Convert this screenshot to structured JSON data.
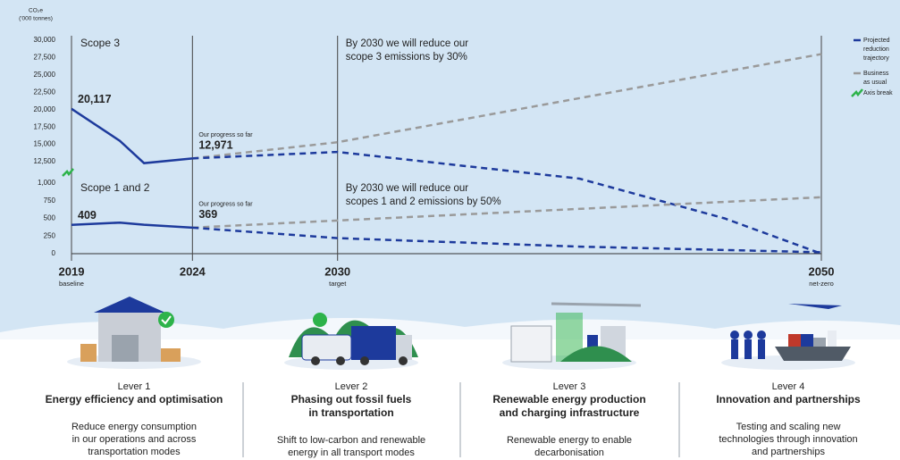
{
  "chart_data": {
    "type": "line",
    "y_label": [
      "CO₂e",
      "('000 tonnes)"
    ],
    "xlim": [
      2019,
      2050
    ],
    "xticks": [
      2019,
      2024,
      2030,
      2050
    ],
    "xtick_notes": [
      "baseline",
      null,
      "target",
      "net-zero"
    ],
    "ylim": [
      0,
      30000
    ],
    "ybreak": [
      1000,
      12500
    ],
    "yticks": [
      0,
      250,
      500,
      750,
      {
        "value": 1000,
        "label": "1,000"
      },
      {
        "value": 12500,
        "label": "12,500"
      },
      {
        "value": 15000,
        "label": "15,000"
      },
      {
        "value": 17500,
        "label": "17,500"
      },
      {
        "value": 20000,
        "label": "20,000"
      },
      {
        "value": 22500,
        "label": "22,500"
      },
      {
        "value": 25000,
        "label": "25,000"
      },
      {
        "value": 27500,
        "label": "27,500"
      },
      {
        "value": 30000,
        "label": "30,000"
      }
    ],
    "colors": {
      "actual": "#1d3a9c",
      "projected": "#1d3a9c",
      "bau": "#9a9a9a",
      "break": "#2db34a"
    },
    "legend": {
      "projected": [
        "Projected",
        "reduction",
        "trajectory"
      ],
      "bau": [
        "Business",
        "as usual"
      ],
      "break": "Axis break"
    },
    "groups": [
      {
        "name": "Scope 3",
        "note": [
          "By 2030 we will reduce our",
          "scope 3 emissions by 30%"
        ],
        "progress_label": "Our progress so far",
        "actual": {
          "x": [
            2019,
            2021,
            2022,
            2024
          ],
          "values": [
            20117,
            15500,
            11700,
            12971
          ],
          "value_labels": [
            "20,117",
            null,
            null,
            "12,971"
          ]
        },
        "projected": {
          "x": [
            2024,
            2030,
            2040,
            2046,
            2050
          ],
          "values": [
            12971,
            13900,
            3400,
            500,
            0
          ]
        },
        "bau": {
          "x": [
            2024,
            2030,
            2050
          ],
          "values": [
            12971,
            15300,
            28000
          ]
        }
      },
      {
        "name": "Scope 1 and 2",
        "note": [
          "By 2030 we will reduce our",
          "scopes 1 and 2 emissions by 50%"
        ],
        "progress_label": "Our progress so far",
        "actual": {
          "x": [
            2019,
            2021,
            2022,
            2024
          ],
          "values": [
            409,
            440,
            410,
            369
          ],
          "value_labels": [
            "409",
            null,
            null,
            "369"
          ]
        },
        "projected": {
          "x": [
            2024,
            2030,
            2040,
            2050
          ],
          "values": [
            369,
            220,
            100,
            20
          ]
        },
        "bau": {
          "x": [
            2024,
            2030,
            2050
          ],
          "values": [
            369,
            470,
            800
          ]
        }
      }
    ]
  },
  "levers": [
    {
      "number": "Lever 1",
      "title": [
        "Energy efficiency and optimisation"
      ],
      "description": [
        "Reduce energy consumption",
        "in our operations and across",
        "transportation modes"
      ]
    },
    {
      "number": "Lever 2",
      "title": [
        "Phasing out fossil fuels",
        "in transportation"
      ],
      "description": [
        "Shift to low-carbon and renewable",
        "energy in all transport modes"
      ]
    },
    {
      "number": "Lever 3",
      "title": [
        "Renewable energy production",
        "and charging infrastructure"
      ],
      "description": [
        "Renewable energy to enable",
        "decarbonisation"
      ]
    },
    {
      "number": "Lever 4",
      "title": [
        "Innovation and partnerships"
      ],
      "description": [
        "Testing and scaling new",
        "technologies through innovation",
        "and partnerships"
      ]
    }
  ]
}
